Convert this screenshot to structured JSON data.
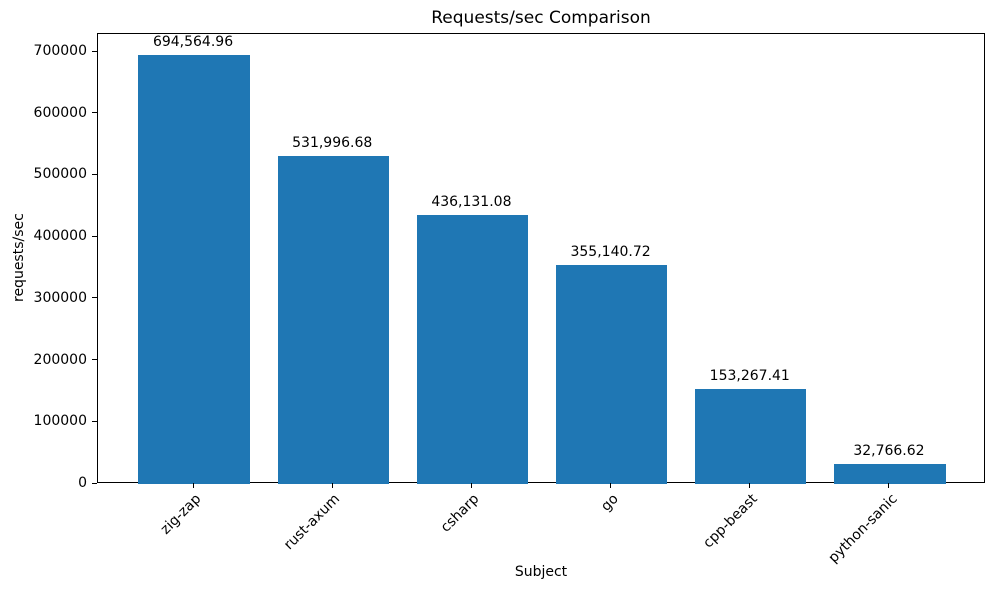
{
  "chart_data": {
    "type": "bar",
    "title": "Requests/sec Comparison",
    "xlabel": "Subject",
    "ylabel": "requests/sec",
    "categories": [
      "zig-zap",
      "rust-axum",
      "csharp",
      "go",
      "cpp-beast",
      "python-sanic"
    ],
    "values": [
      694564.96,
      531996.68,
      436131.08,
      355140.72,
      153267.41,
      32766.62
    ],
    "value_labels": [
      "694,564.96",
      "531,996.68",
      "436,131.08",
      "355,140.72",
      "153,267.41",
      "32,766.62"
    ],
    "ytick_labels": [
      "0",
      "100000",
      "200000",
      "300000",
      "400000",
      "500000",
      "600000",
      "700000"
    ],
    "yticks": [
      0,
      100000,
      200000,
      300000,
      400000,
      500000,
      600000,
      700000
    ],
    "ylim": [
      0,
      729300
    ],
    "bar_color": "#1f77b4",
    "grid": false,
    "legend_position": "none"
  }
}
